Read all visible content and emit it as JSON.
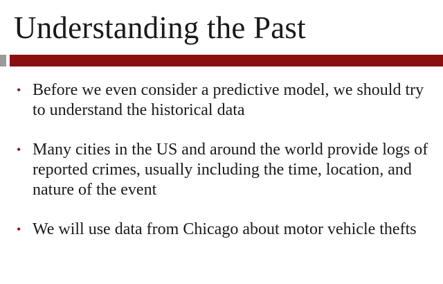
{
  "slide": {
    "title": "Understanding the Past",
    "accent_color": "#8a0f0f",
    "tab_color": "#9a9a9a",
    "bullet_glyph": "•",
    "bullets": [
      "Before we even consider a predictive model, we should try to understand the historical data",
      "Many cities in the US and around the world provide logs of reported crimes, usually including the time, location, and nature of the event",
      "We will use data from Chicago about motor vehicle thefts"
    ]
  }
}
